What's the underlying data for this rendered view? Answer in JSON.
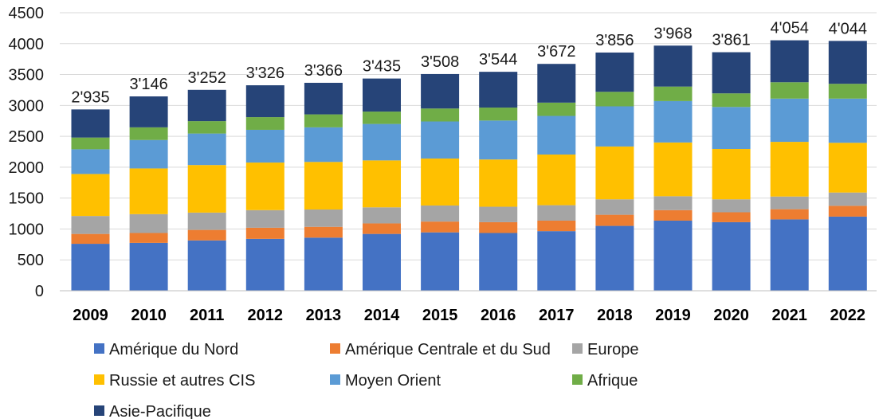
{
  "chart_data": {
    "type": "bar",
    "stacked": true,
    "title": "",
    "xlabel": "",
    "ylabel": "",
    "ylim": [
      0,
      4500
    ],
    "yticks": [
      0,
      500,
      1000,
      1500,
      2000,
      2500,
      3000,
      3500,
      4000,
      4500
    ],
    "ytick_labels": [
      "0",
      "500",
      "1000",
      "1500",
      "2000",
      "2500",
      "3000",
      "3500",
      "4000",
      "4500"
    ],
    "grid": true,
    "legend_position": "bottom",
    "categories": [
      "2009",
      "2010",
      "2011",
      "2012",
      "2013",
      "2014",
      "2015",
      "2016",
      "2017",
      "2018",
      "2019",
      "2020",
      "2021",
      "2022"
    ],
    "totals": [
      2935,
      3146,
      3252,
      3326,
      3366,
      3435,
      3508,
      3544,
      3672,
      3856,
      3968,
      3861,
      4054,
      4044
    ],
    "total_labels": [
      "2'935",
      "3'146",
      "3'252",
      "3'326",
      "3'366",
      "3'435",
      "3'508",
      "3'544",
      "3'672",
      "3'856",
      "3'968",
      "3'861",
      "4'054",
      "4'044"
    ],
    "series": [
      {
        "name": "Amérique du Nord",
        "color": "#4472C4",
        "values": [
          760,
          775,
          815,
          840,
          860,
          920,
          945,
          935,
          965,
          1050,
          1135,
          1110,
          1155,
          1200
        ]
      },
      {
        "name": "Amérique Centrale et du Sud",
        "color": "#ED7D31",
        "values": [
          160,
          160,
          170,
          180,
          175,
          170,
          175,
          175,
          170,
          180,
          170,
          160,
          165,
          175
        ]
      },
      {
        "name": "Europe",
        "color": "#A5A5A5",
        "values": [
          290,
          305,
          280,
          285,
          280,
          260,
          260,
          250,
          250,
          250,
          225,
          210,
          205,
          215
        ]
      },
      {
        "name": "Russie et autres CIS",
        "color": "#FFC000",
        "values": [
          680,
          740,
          770,
          770,
          770,
          760,
          760,
          765,
          820,
          855,
          870,
          815,
          885,
          805
        ]
      },
      {
        "name": "Moyen Orient",
        "color": "#5B9BD5",
        "values": [
          400,
          460,
          510,
          530,
          560,
          590,
          600,
          630,
          625,
          650,
          670,
          680,
          700,
          715
        ]
      },
      {
        "name": "Afrique",
        "color": "#70AD47",
        "values": [
          190,
          205,
          200,
          205,
          210,
          200,
          210,
          210,
          215,
          235,
          235,
          220,
          265,
          240
        ]
      },
      {
        "name": "Asie-Pacifique",
        "color": "#264478",
        "values": [
          455,
          501,
          507,
          516,
          511,
          535,
          558,
          579,
          627,
          636,
          663,
          666,
          679,
          694
        ]
      }
    ],
    "gridline_color": "#D9D9D9",
    "axis_color": "#BFBFBF"
  }
}
